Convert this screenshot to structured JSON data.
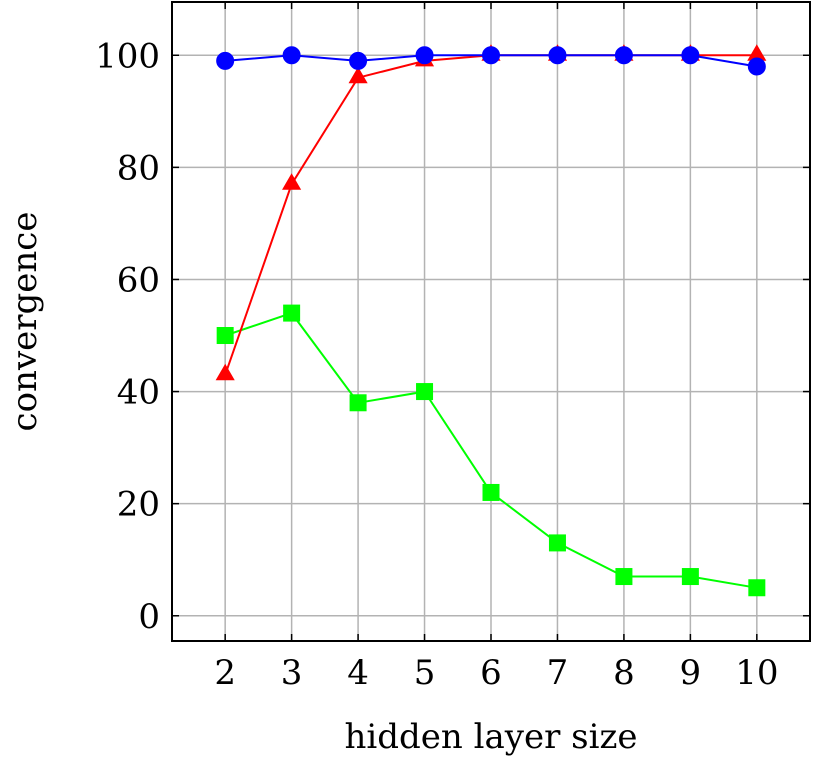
{
  "chart_data": {
    "type": "line",
    "xlabel": "hidden layer size",
    "ylabel": "convergence",
    "x": [
      2,
      3,
      4,
      5,
      6,
      7,
      8,
      9,
      10
    ],
    "xticks": [
      2,
      3,
      4,
      5,
      6,
      7,
      8,
      9,
      10
    ],
    "yticks": [
      0,
      20,
      40,
      60,
      80,
      100
    ],
    "xlim": [
      1.2,
      10.8
    ],
    "ylim": [
      -4.5,
      109.5
    ],
    "grid": true,
    "series": [
      {
        "marker": "circle",
        "color": "#0000ff",
        "values": [
          99,
          100,
          99,
          100,
          100,
          100,
          100,
          100,
          98
        ]
      },
      {
        "marker": "triangle",
        "color": "#ff0000",
        "values": [
          43,
          77,
          96,
          99,
          100,
          100,
          100,
          100,
          100
        ]
      },
      {
        "marker": "square",
        "color": "#00ff00",
        "values": [
          50,
          54,
          38,
          40,
          22,
          13,
          7,
          7,
          5
        ]
      }
    ]
  }
}
